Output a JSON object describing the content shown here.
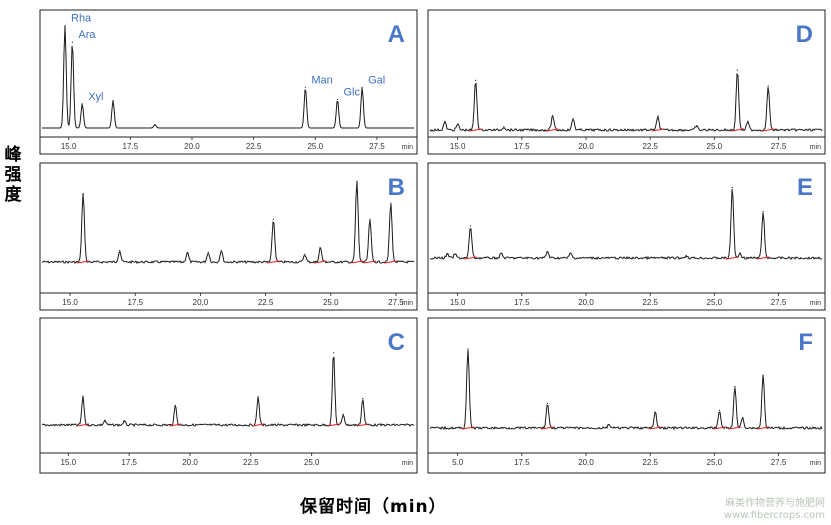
{
  "y_axis_title": "峰强度",
  "x_axis_title": "保留时间（min）",
  "watermark": {
    "line1": "麻类作物营养与施肥网",
    "line2": "www.fibercrops.com"
  },
  "colors": {
    "letter": "#4a77c7",
    "trace": "#1a1a1a",
    "baseline": "#e02020",
    "label": "#3f6fc0"
  },
  "chart_data": [
    {
      "id": "A",
      "type": "line",
      "tick_labels": [
        "15.0",
        "17.5",
        "20.0",
        "22.5",
        "25.0",
        "27.5"
      ],
      "x_unit": "min",
      "xlim": [
        14.0,
        28.8
      ],
      "ylim": [
        0,
        1
      ],
      "peaks": [
        {
          "rt": 14.85,
          "h": 0.93,
          "label": "Rha"
        },
        {
          "rt": 15.15,
          "h": 0.78,
          "label": "Ara"
        },
        {
          "rt": 15.55,
          "h": 0.22,
          "label": "Xyl"
        },
        {
          "rt": 16.8,
          "h": 0.25,
          "label": ""
        },
        {
          "rt": 18.5,
          "h": 0.03,
          "label": ""
        },
        {
          "rt": 24.6,
          "h": 0.37,
          "label": "Man"
        },
        {
          "rt": 25.9,
          "h": 0.26,
          "label": "Glc"
        },
        {
          "rt": 26.9,
          "h": 0.37,
          "label": "Gal"
        }
      ]
    },
    {
      "id": "B",
      "type": "line",
      "tick_labels": [
        "15.0",
        "17.5",
        "20.0",
        "22.5",
        "25.0",
        "27.5"
      ],
      "x_unit": "min",
      "xlim": [
        14.0,
        28.0
      ],
      "ylim": [
        0,
        1
      ],
      "peaks": [
        {
          "rt": 15.5,
          "h": 0.72
        },
        {
          "rt": 16.9,
          "h": 0.12
        },
        {
          "rt": 19.5,
          "h": 0.1
        },
        {
          "rt": 20.3,
          "h": 0.1
        },
        {
          "rt": 20.8,
          "h": 0.12
        },
        {
          "rt": 22.8,
          "h": 0.45
        },
        {
          "rt": 24.0,
          "h": 0.08
        },
        {
          "rt": 24.6,
          "h": 0.15
        },
        {
          "rt": 26.0,
          "h": 0.85
        },
        {
          "rt": 26.5,
          "h": 0.45
        },
        {
          "rt": 27.3,
          "h": 0.62
        }
      ]
    },
    {
      "id": "C",
      "type": "line",
      "tick_labels": [
        "15.0",
        "17.5",
        "20.0",
        "22.5",
        "25.0"
      ],
      "x_unit": "min",
      "xlim": [
        14.0,
        29.0
      ],
      "ylim": [
        0,
        1
      ],
      "peaks": [
        {
          "rt": 15.6,
          "h": 0.32
        },
        {
          "rt": 16.5,
          "h": 0.05
        },
        {
          "rt": 17.3,
          "h": 0.04
        },
        {
          "rt": 19.4,
          "h": 0.22
        },
        {
          "rt": 22.8,
          "h": 0.32
        },
        {
          "rt": 25.9,
          "h": 0.82
        },
        {
          "rt": 26.3,
          "h": 0.12
        },
        {
          "rt": 27.1,
          "h": 0.3
        }
      ]
    },
    {
      "id": "D",
      "type": "line",
      "tick_labels": [
        "15.0",
        "17.5",
        "20.0",
        "22.5",
        "25.0",
        "27.5"
      ],
      "x_unit": "min",
      "xlim": [
        14.0,
        29.0
      ],
      "ylim": [
        0,
        1
      ],
      "peaks": [
        {
          "rt": 14.5,
          "h": 0.1
        },
        {
          "rt": 15.0,
          "h": 0.07
        },
        {
          "rt": 15.7,
          "h": 0.62
        },
        {
          "rt": 16.8,
          "h": 0.04
        },
        {
          "rt": 18.7,
          "h": 0.18
        },
        {
          "rt": 19.5,
          "h": 0.14
        },
        {
          "rt": 22.8,
          "h": 0.16
        },
        {
          "rt": 24.3,
          "h": 0.05
        },
        {
          "rt": 25.9,
          "h": 0.75
        },
        {
          "rt": 26.3,
          "h": 0.1
        },
        {
          "rt": 27.1,
          "h": 0.55
        }
      ]
    },
    {
      "id": "E",
      "type": "line",
      "tick_labels": [
        "15.0",
        "17.5",
        "20.0",
        "22.5",
        "25.0",
        "27.5"
      ],
      "x_unit": "min",
      "xlim": [
        14.0,
        29.0
      ],
      "ylim": [
        0,
        1
      ],
      "peaks": [
        {
          "rt": 14.6,
          "h": 0.05
        },
        {
          "rt": 14.9,
          "h": 0.05
        },
        {
          "rt": 15.5,
          "h": 0.4
        },
        {
          "rt": 16.7,
          "h": 0.06
        },
        {
          "rt": 18.5,
          "h": 0.08
        },
        {
          "rt": 19.4,
          "h": 0.06
        },
        {
          "rt": 23.9,
          "h": 0.03
        },
        {
          "rt": 25.7,
          "h": 0.88
        },
        {
          "rt": 26.0,
          "h": 0.06
        },
        {
          "rt": 26.9,
          "h": 0.58
        }
      ]
    },
    {
      "id": "F",
      "type": "line",
      "tick_labels": [
        "5.0",
        "17.5",
        "20.0",
        "22.5",
        "25.0",
        "27.5"
      ],
      "x_unit": "min",
      "xlim": [
        14.0,
        29.0
      ],
      "ylim": [
        0,
        1
      ],
      "peaks": [
        {
          "rt": 15.4,
          "h": 0.9
        },
        {
          "rt": 18.5,
          "h": 0.28
        },
        {
          "rt": 20.9,
          "h": 0.04
        },
        {
          "rt": 22.7,
          "h": 0.18
        },
        {
          "rt": 25.2,
          "h": 0.2
        },
        {
          "rt": 25.8,
          "h": 0.47
        },
        {
          "rt": 26.1,
          "h": 0.12
        },
        {
          "rt": 26.9,
          "h": 0.6
        }
      ]
    }
  ]
}
